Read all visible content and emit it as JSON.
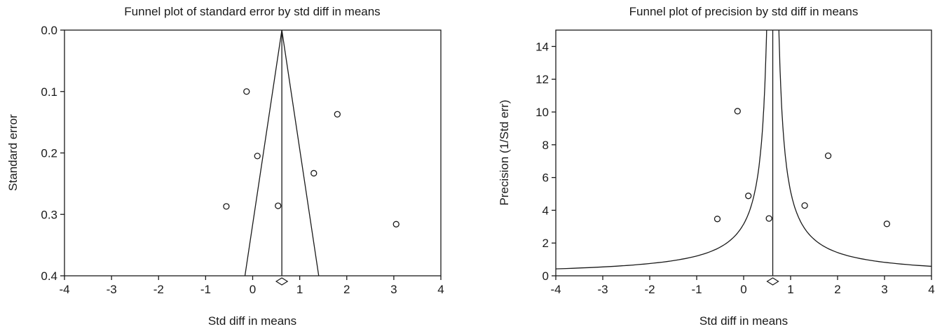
{
  "chart_data": [
    {
      "type": "scatter",
      "title": "Funnel plot of standard error by std diff in means",
      "xlabel": "Std diff in means",
      "ylabel": "Standard error",
      "xlim": [
        -4,
        4
      ],
      "ylim": [
        0.0,
        0.4
      ],
      "y_inverted": true,
      "xticks": [
        -4,
        -3,
        -2,
        -1,
        0,
        1,
        2,
        3,
        4
      ],
      "xtick_labels": [
        "-4",
        "-3",
        "-2",
        "-1",
        "0",
        "1",
        "2",
        "3",
        "4"
      ],
      "yticks": [
        0.0,
        0.1,
        0.2,
        0.3,
        0.4
      ],
      "ytick_labels": [
        "0.0",
        "0.1",
        "0.2",
        "0.3",
        "0.4"
      ],
      "summary_effect": 0.62,
      "summary_diamond": [
        0.5,
        0.74
      ],
      "funnel": "triangle",
      "points": [
        {
          "x": -0.13,
          "y": 0.1
        },
        {
          "x": 0.1,
          "y": 0.205
        },
        {
          "x": -0.56,
          "y": 0.287
        },
        {
          "x": 0.54,
          "y": 0.286
        },
        {
          "x": 1.3,
          "y": 0.233
        },
        {
          "x": 1.8,
          "y": 0.137
        },
        {
          "x": 3.05,
          "y": 0.316
        }
      ],
      "grid": false
    },
    {
      "type": "scatter",
      "title": "Funnel plot of precision by std diff in means",
      "xlabel": "Std diff in means",
      "ylabel": "Precision (1/Std err)",
      "xlim": [
        -4,
        4
      ],
      "ylim": [
        0,
        15
      ],
      "xticks": [
        -4,
        -3,
        -2,
        -1,
        0,
        1,
        2,
        3,
        4
      ],
      "xtick_labels": [
        "-4",
        "-3",
        "-2",
        "-1",
        "0",
        "1",
        "2",
        "3",
        "4"
      ],
      "yticks": [
        0,
        2,
        4,
        6,
        8,
        10,
        12,
        14
      ],
      "ytick_labels": [
        "0",
        "2",
        "4",
        "6",
        "8",
        "10",
        "12",
        "14"
      ],
      "summary_effect": 0.62,
      "summary_diamond": [
        0.5,
        0.74
      ],
      "funnel": "hyperbolic",
      "points": [
        {
          "x": -0.13,
          "y": 10.05
        },
        {
          "x": 0.1,
          "y": 4.88
        },
        {
          "x": -0.56,
          "y": 3.47
        },
        {
          "x": 0.54,
          "y": 3.5
        },
        {
          "x": 1.3,
          "y": 4.29
        },
        {
          "x": 1.8,
          "y": 7.33
        },
        {
          "x": 3.05,
          "y": 3.17
        }
      ],
      "grid": false
    }
  ]
}
